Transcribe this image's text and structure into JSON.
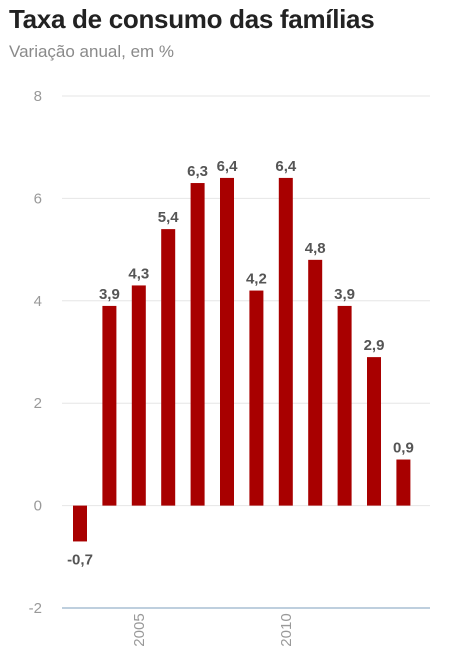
{
  "header": {
    "title": "Taxa de consumo das famílias",
    "subtitle": "Variação anual, em %"
  },
  "colors": {
    "bar": "#a80000",
    "grid": "#e6e6e6",
    "baseline": "#a9bfd3"
  },
  "chart_data": {
    "type": "bar",
    "title": "Taxa de consumo das famílias",
    "subtitle": "Variação anual, em %",
    "xlabel": "",
    "ylabel": "",
    "x": [
      2003,
      2004,
      2005,
      2006,
      2007,
      2008,
      2009,
      2010,
      2011,
      2012,
      2013,
      2014
    ],
    "values": [
      -0.7,
      3.9,
      4.3,
      5.4,
      6.3,
      6.4,
      4.2,
      6.4,
      4.8,
      3.9,
      2.9,
      0.9
    ],
    "value_labels": [
      "-0,7",
      "3,9",
      "4,3",
      "5,4",
      "6,3",
      "6,4",
      "4,2",
      "6,4",
      "4,8",
      "3,9",
      "2,9",
      "0,9"
    ],
    "ylim": [
      -2,
      8
    ],
    "yticks": [
      -2,
      0,
      2,
      4,
      6,
      8
    ],
    "xtick_labels": [
      {
        "x": 2005,
        "label": "2005"
      },
      {
        "x": 2010,
        "label": "2010"
      }
    ],
    "grid": true,
    "legend": "none"
  }
}
